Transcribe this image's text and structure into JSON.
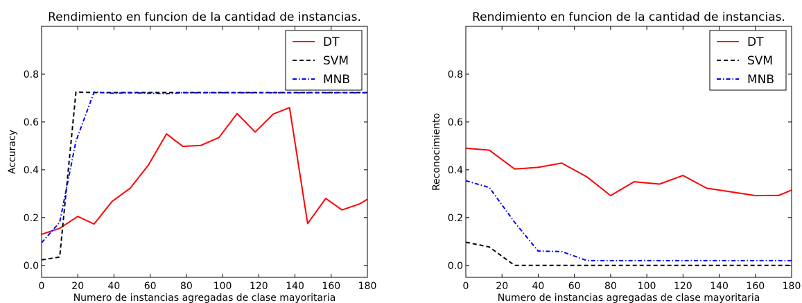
{
  "chart_data": [
    {
      "type": "line",
      "title": "Rendimiento en funcion de la cantidad de instancias.",
      "xlabel": "Numero de instancias agregadas de clase mayoritaria",
      "ylabel": "Accuracy",
      "xlim": [
        0,
        180
      ],
      "ylim": [
        -0.05,
        1.0
      ],
      "xticks": [
        0,
        20,
        40,
        60,
        80,
        100,
        120,
        140,
        160,
        180
      ],
      "yticks": [
        0.0,
        0.2,
        0.4,
        0.6,
        0.8
      ],
      "xtick_labels": [
        "0",
        "20",
        "40",
        "60",
        "80",
        "100",
        "120",
        "140",
        "160",
        "180"
      ],
      "ytick_labels": [
        "0.0",
        "0.2",
        "0.4",
        "0.6",
        "0.8"
      ],
      "legend_position": "top-right",
      "grid": false,
      "series": [
        {
          "name": "DT",
          "color": "#ff0000",
          "style": "solid",
          "x": [
            0,
            10,
            20,
            29,
            39,
            49,
            59,
            69,
            78,
            88,
            98,
            108,
            118,
            128,
            137,
            147,
            157,
            166,
            176,
            180
          ],
          "y": [
            0.13,
            0.155,
            0.205,
            0.173,
            0.268,
            0.323,
            0.42,
            0.55,
            0.498,
            0.502,
            0.535,
            0.635,
            0.558,
            0.633,
            0.66,
            0.175,
            0.28,
            0.232,
            0.258,
            0.277
          ]
        },
        {
          "name": "SVM",
          "color": "#000000",
          "style": "dashed",
          "x": [
            0,
            10,
            19,
            29,
            39,
            49,
            59,
            69,
            78,
            88,
            98,
            108,
            118,
            128,
            137,
            147,
            157,
            166,
            176,
            180
          ],
          "y": [
            0.023,
            0.035,
            0.725,
            0.723,
            0.723,
            0.723,
            0.723,
            0.723,
            0.723,
            0.723,
            0.723,
            0.723,
            0.723,
            0.723,
            0.723,
            0.723,
            0.723,
            0.723,
            0.723,
            0.723
          ]
        },
        {
          "name": "MNB",
          "color": "#0000ff",
          "style": "dashdot",
          "x": [
            0,
            10,
            19,
            29,
            39,
            49,
            59,
            69,
            78,
            88,
            98,
            108,
            118,
            128,
            137,
            147,
            157,
            166,
            176,
            180
          ],
          "y": [
            0.095,
            0.18,
            0.52,
            0.725,
            0.72,
            0.722,
            0.72,
            0.718,
            0.722,
            0.722,
            0.722,
            0.722,
            0.722,
            0.722,
            0.722,
            0.722,
            0.722,
            0.722,
            0.722,
            0.722
          ]
        }
      ]
    },
    {
      "type": "line",
      "title": "Rendimiento en funcion de la cantidad de instancias.",
      "xlabel": "Numero de instancias agregadas de clase mayoritaria",
      "ylabel": "Reconocimiento",
      "xlim": [
        0,
        180
      ],
      "ylim": [
        -0.05,
        1.0
      ],
      "xticks": [
        0,
        20,
        40,
        60,
        80,
        100,
        120,
        140,
        160,
        180
      ],
      "yticks": [
        0.0,
        0.2,
        0.4,
        0.6,
        0.8
      ],
      "xtick_labels": [
        "0",
        "20",
        "40",
        "60",
        "80",
        "100",
        "120",
        "140",
        "160",
        "180"
      ],
      "ytick_labels": [
        "0.0",
        "0.2",
        "0.4",
        "0.6",
        "0.8"
      ],
      "legend_position": "top-right",
      "grid": false,
      "series": [
        {
          "name": "DT",
          "color": "#ff0000",
          "style": "solid",
          "x": [
            0,
            13,
            27,
            40,
            53,
            67,
            80,
            93,
            107,
            120,
            133,
            147,
            160,
            173,
            180
          ],
          "y": [
            0.49,
            0.482,
            0.403,
            0.41,
            0.428,
            0.37,
            0.292,
            0.35,
            0.34,
            0.376,
            0.323,
            0.307,
            0.292,
            0.293,
            0.315
          ]
        },
        {
          "name": "SVM",
          "color": "#000000",
          "style": "dashed",
          "x": [
            0,
            13,
            27,
            40,
            53,
            67,
            80,
            93,
            107,
            120,
            133,
            147,
            160,
            173,
            180
          ],
          "y": [
            0.097,
            0.077,
            0.0,
            0.0,
            0.0,
            0.0,
            0.0,
            0.0,
            0.0,
            0.0,
            0.0,
            0.0,
            0.0,
            0.0,
            0.0
          ]
        },
        {
          "name": "MNB",
          "color": "#0000ff",
          "style": "dashdot",
          "x": [
            0,
            13,
            27,
            40,
            53,
            67,
            80,
            93,
            107,
            120,
            133,
            147,
            160,
            173,
            180
          ],
          "y": [
            0.354,
            0.326,
            0.18,
            0.06,
            0.058,
            0.02,
            0.02,
            0.02,
            0.02,
            0.02,
            0.02,
            0.02,
            0.02,
            0.02,
            0.02
          ]
        }
      ]
    }
  ]
}
